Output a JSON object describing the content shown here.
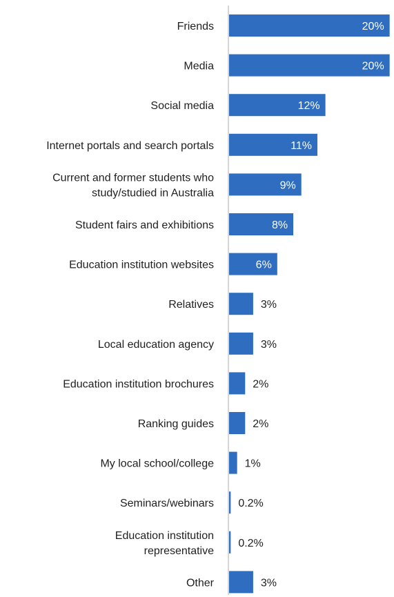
{
  "chart_data": {
    "type": "bar",
    "orientation": "horizontal",
    "title": "",
    "xlabel": "",
    "ylabel": "",
    "xlim": [
      0,
      20.2
    ],
    "grid": false,
    "legend": "none",
    "bar_color": "#2e6dbf",
    "categories": [
      "Friends",
      "Media",
      "Social media",
      "Internet portals and search portals",
      "Current and former students who study/studied in Australia",
      "Student fairs and exhibitions",
      "Education institution websites",
      "Relatives",
      "Local education agency",
      "Education institution brochures",
      "Ranking guides",
      "My local school/college",
      "Seminars/webinars",
      "Education institution representative",
      "Other"
    ],
    "category_lines": [
      [
        "Friends"
      ],
      [
        "Media"
      ],
      [
        "Social media"
      ],
      [
        "Internet portals and search portals"
      ],
      [
        "Current and former students who",
        "study/studied in Australia"
      ],
      [
        "Student fairs and exhibitions"
      ],
      [
        "Education institution websites"
      ],
      [
        "Relatives"
      ],
      [
        "Local education agency"
      ],
      [
        "Education institution brochures"
      ],
      [
        "Ranking guides"
      ],
      [
        "My local school/college"
      ],
      [
        "Seminars/webinars"
      ],
      [
        "Education institution",
        "representative"
      ],
      [
        "Other"
      ]
    ],
    "values": [
      20,
      20,
      12,
      11,
      9,
      8,
      6,
      3,
      3,
      2,
      2,
      1,
      0.2,
      0.2,
      3
    ],
    "value_labels": [
      "20%",
      "20%",
      "12%",
      "11%",
      "9%",
      "8%",
      "6%",
      "3%",
      "3%",
      "2%",
      "2%",
      "1%",
      "0.2%",
      "0.2%",
      "3%"
    ]
  }
}
